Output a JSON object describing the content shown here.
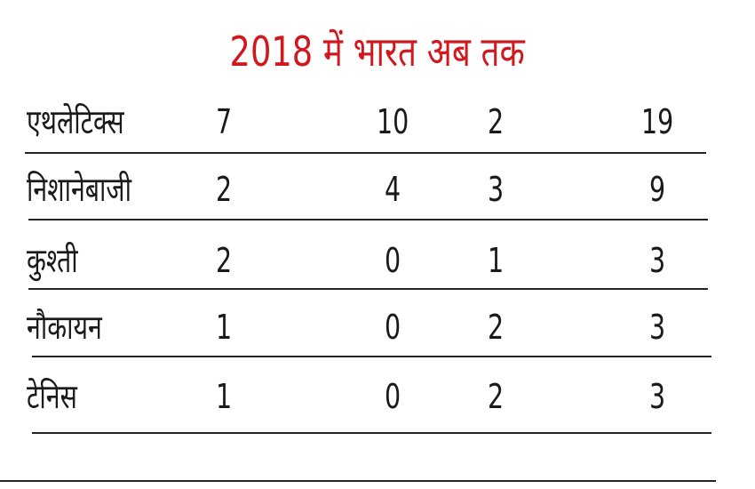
{
  "title": "2018 में भारत अब तक",
  "rows": [
    {
      "name": "एथलेटिक्स",
      "values": [
        "7",
        "10",
        "2",
        "19"
      ]
    },
    {
      "name": "निशानेबाजी",
      "values": [
        "2",
        "4",
        "3",
        "9"
      ]
    },
    {
      "name": "कुश्ती",
      "values": [
        "2",
        "0",
        "1",
        "3"
      ]
    },
    {
      "name": "नौकायन",
      "values": [
        "1",
        "0",
        "2",
        "3"
      ]
    },
    {
      "name": "टेनिस",
      "values": [
        "1",
        "0",
        "2",
        "3"
      ]
    }
  ],
  "colors": {
    "title": "#d0191f",
    "text": "#1a1a1a"
  }
}
